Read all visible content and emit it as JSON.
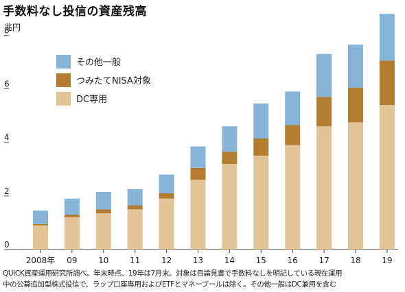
{
  "title": "手数料なし投信の資産残高",
  "unit_label": "兆円",
  "footnote": {
    "line1": "QUICK資産運用研究所調べ。年末時点、19年は7月末。対象は目論見書で手数料なしを明記している現在運用",
    "line2": "中の公募追加型株式投信で、ラップ口座専用およびETFとマネープールは除く。その他一般はDC兼用を含む"
  },
  "chart_data": {
    "type": "bar",
    "stacked": true,
    "title": "手数料なし投信の資産残高",
    "ylabel": "兆円",
    "ylim": [
      0,
      8.6
    ],
    "yticks": [
      0,
      2,
      4,
      6,
      8
    ],
    "grid": false,
    "legend_position": "top-left",
    "categories": [
      "2008年",
      "09",
      "10",
      "11",
      "12",
      "13",
      "14",
      "15",
      "16",
      "17",
      "18",
      "19"
    ],
    "series": [
      {
        "name": "DC専用",
        "color": "#e3c497",
        "values": [
          0.9,
          1.2,
          1.35,
          1.5,
          1.9,
          2.6,
          3.2,
          3.5,
          3.9,
          4.6,
          4.75,
          5.4
        ]
      },
      {
        "name": "つみたてNISA対象",
        "color": "#b47c2e",
        "values": [
          0.05,
          0.1,
          0.15,
          0.15,
          0.2,
          0.45,
          0.45,
          0.65,
          0.75,
          1.1,
          1.3,
          1.65
        ]
      },
      {
        "name": "その他一般",
        "color": "#84b4da",
        "values": [
          0.5,
          0.6,
          0.65,
          0.6,
          0.7,
          0.8,
          0.95,
          1.3,
          1.25,
          1.6,
          1.6,
          1.75
        ]
      }
    ],
    "legend_order": [
      "その他一般",
      "つみたてNISA対象",
      "DC専用"
    ]
  }
}
